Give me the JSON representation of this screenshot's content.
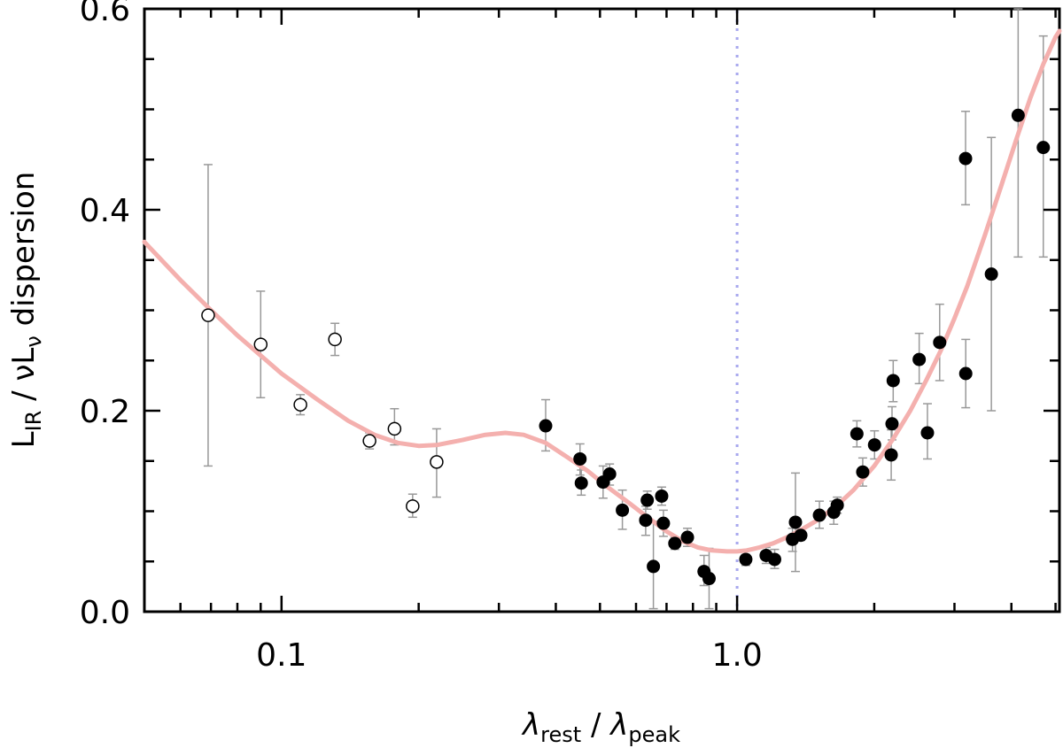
{
  "chart_data": {
    "type": "scatter",
    "xscale": "log",
    "xlim": [
      0.05,
      5.1
    ],
    "ylim": [
      0.0,
      0.6
    ],
    "xlabel": {
      "main": "λ",
      "sub1": "rest",
      "sep": " / ",
      "main2": "λ",
      "sub2": "peak"
    },
    "ylabel": {
      "p1": "L",
      "sub1": "IR",
      "p2": " / νL",
      "sub2": "ν",
      "p3": " dispersion"
    },
    "xticks": [
      {
        "value": 0.1,
        "label": "0.1"
      },
      {
        "value": 1.0,
        "label": "1.0"
      }
    ],
    "yticks": [
      {
        "value": 0.0,
        "label": "0.0"
      },
      {
        "value": 0.2,
        "label": "0.2"
      },
      {
        "value": 0.4,
        "label": "0.4"
      },
      {
        "value": 0.6,
        "label": "0.6"
      }
    ],
    "vline": {
      "x": 1.0,
      "color": "#a8a8ee",
      "style": "dotted"
    },
    "colors": {
      "fit": "#f4b0ae",
      "errorbar": "#999999",
      "marker": "#000000"
    },
    "series": [
      {
        "name": "open",
        "marker": "open-circle",
        "points": [
          {
            "x": 0.069,
            "y": 0.295,
            "lo": 0.145,
            "hi": 0.445
          },
          {
            "x": 0.09,
            "y": 0.266,
            "lo": 0.213,
            "hi": 0.319
          },
          {
            "x": 0.11,
            "y": 0.206,
            "lo": 0.196,
            "hi": 0.216
          },
          {
            "x": 0.131,
            "y": 0.271,
            "lo": 0.255,
            "hi": 0.287
          },
          {
            "x": 0.156,
            "y": 0.17,
            "lo": 0.162,
            "hi": 0.178
          },
          {
            "x": 0.177,
            "y": 0.182,
            "lo": 0.166,
            "hi": 0.202
          },
          {
            "x": 0.194,
            "y": 0.105,
            "lo": 0.094,
            "hi": 0.117
          },
          {
            "x": 0.219,
            "y": 0.149,
            "lo": 0.114,
            "hi": 0.182
          }
        ]
      },
      {
        "name": "filled",
        "marker": "filled-circle",
        "points": [
          {
            "x": 0.38,
            "y": 0.185,
            "lo": 0.16,
            "hi": 0.211
          },
          {
            "x": 0.452,
            "y": 0.152,
            "lo": 0.136,
            "hi": 0.167
          },
          {
            "x": 0.455,
            "y": 0.128,
            "lo": 0.116,
            "hi": 0.141
          },
          {
            "x": 0.508,
            "y": 0.129,
            "lo": 0.113,
            "hi": 0.145
          },
          {
            "x": 0.525,
            "y": 0.137,
            "lo": 0.126,
            "hi": 0.147
          },
          {
            "x": 0.56,
            "y": 0.101,
            "lo": 0.082,
            "hi": 0.121
          },
          {
            "x": 0.635,
            "y": 0.111,
            "lo": 0.102,
            "hi": 0.12
          },
          {
            "x": 0.63,
            "y": 0.091,
            "lo": 0.076,
            "hi": 0.105
          },
          {
            "x": 0.683,
            "y": 0.115,
            "lo": 0.106,
            "hi": 0.124
          },
          {
            "x": 0.689,
            "y": 0.088,
            "lo": 0.075,
            "hi": 0.101
          },
          {
            "x": 0.655,
            "y": 0.045,
            "lo": 0.003,
            "hi": 0.09
          },
          {
            "x": 0.73,
            "y": 0.068,
            "lo": 0.062,
            "hi": 0.074
          },
          {
            "x": 0.778,
            "y": 0.074,
            "lo": 0.065,
            "hi": 0.083
          },
          {
            "x": 0.846,
            "y": 0.04,
            "lo": 0.026,
            "hi": 0.056
          },
          {
            "x": 0.868,
            "y": 0.033,
            "lo": 0.003,
            "hi": 0.063
          },
          {
            "x": 1.045,
            "y": 0.052,
            "lo": 0.046,
            "hi": 0.057
          },
          {
            "x": 1.158,
            "y": 0.056,
            "lo": 0.048,
            "hi": 0.064
          },
          {
            "x": 1.209,
            "y": 0.052,
            "lo": 0.043,
            "hi": 0.062
          },
          {
            "x": 1.343,
            "y": 0.089,
            "lo": 0.04,
            "hi": 0.138
          },
          {
            "x": 1.323,
            "y": 0.072,
            "lo": 0.06,
            "hi": 0.083
          },
          {
            "x": 1.38,
            "y": 0.076,
            "lo": 0.071,
            "hi": 0.082
          },
          {
            "x": 1.516,
            "y": 0.096,
            "lo": 0.083,
            "hi": 0.11
          },
          {
            "x": 1.63,
            "y": 0.099,
            "lo": 0.087,
            "hi": 0.11
          },
          {
            "x": 1.659,
            "y": 0.106,
            "lo": 0.098,
            "hi": 0.114
          },
          {
            "x": 1.832,
            "y": 0.177,
            "lo": 0.164,
            "hi": 0.19
          },
          {
            "x": 1.887,
            "y": 0.139,
            "lo": 0.125,
            "hi": 0.153
          },
          {
            "x": 2.003,
            "y": 0.166,
            "lo": 0.152,
            "hi": 0.18
          },
          {
            "x": 2.179,
            "y": 0.156,
            "lo": 0.131,
            "hi": 0.181
          },
          {
            "x": 2.188,
            "y": 0.187,
            "lo": 0.171,
            "hi": 0.204
          },
          {
            "x": 2.201,
            "y": 0.23,
            "lo": 0.209,
            "hi": 0.25
          },
          {
            "x": 2.51,
            "y": 0.251,
            "lo": 0.227,
            "hi": 0.277
          },
          {
            "x": 2.617,
            "y": 0.178,
            "lo": 0.152,
            "hi": 0.207
          },
          {
            "x": 2.784,
            "y": 0.268,
            "lo": 0.23,
            "hi": 0.306
          },
          {
            "x": 3.173,
            "y": 0.451,
            "lo": 0.405,
            "hi": 0.498
          },
          {
            "x": 3.176,
            "y": 0.237,
            "lo": 0.203,
            "hi": 0.271
          },
          {
            "x": 3.615,
            "y": 0.336,
            "lo": 0.2,
            "hi": 0.472
          },
          {
            "x": 4.139,
            "y": 0.494,
            "lo": 0.353,
            "hi": 0.6
          },
          {
            "x": 4.7,
            "y": 0.462,
            "lo": 0.353,
            "hi": 0.573
          }
        ]
      }
    ],
    "fit": {
      "name": "fit",
      "points": [
        [
          0.05,
          0.368
        ],
        [
          0.06,
          0.33
        ],
        [
          0.07,
          0.3
        ],
        [
          0.08,
          0.275
        ],
        [
          0.09,
          0.255
        ],
        [
          0.1,
          0.237
        ],
        [
          0.12,
          0.211
        ],
        [
          0.14,
          0.19
        ],
        [
          0.16,
          0.176
        ],
        [
          0.18,
          0.168
        ],
        [
          0.2,
          0.165
        ],
        [
          0.22,
          0.166
        ],
        [
          0.25,
          0.171
        ],
        [
          0.28,
          0.176
        ],
        [
          0.31,
          0.178
        ],
        [
          0.34,
          0.176
        ],
        [
          0.38,
          0.168
        ],
        [
          0.42,
          0.155
        ],
        [
          0.47,
          0.14
        ],
        [
          0.52,
          0.124
        ],
        [
          0.58,
          0.108
        ],
        [
          0.64,
          0.093
        ],
        [
          0.7,
          0.08
        ],
        [
          0.76,
          0.07
        ],
        [
          0.82,
          0.064
        ],
        [
          0.88,
          0.061
        ],
        [
          0.95,
          0.06
        ],
        [
          1.0,
          0.06
        ],
        [
          1.05,
          0.061
        ],
        [
          1.12,
          0.064
        ],
        [
          1.2,
          0.068
        ],
        [
          1.3,
          0.075
        ],
        [
          1.4,
          0.083
        ],
        [
          1.5,
          0.091
        ],
        [
          1.65,
          0.105
        ],
        [
          1.8,
          0.121
        ],
        [
          2.0,
          0.145
        ],
        [
          2.2,
          0.172
        ],
        [
          2.4,
          0.2
        ],
        [
          2.6,
          0.23
        ],
        [
          2.8,
          0.26
        ],
        [
          3.0,
          0.292
        ],
        [
          3.2,
          0.324
        ],
        [
          3.5,
          0.375
        ],
        [
          3.8,
          0.424
        ],
        [
          4.1,
          0.47
        ],
        [
          4.4,
          0.511
        ],
        [
          4.7,
          0.545
        ],
        [
          5.0,
          0.572
        ],
        [
          5.1,
          0.578
        ]
      ]
    }
  }
}
